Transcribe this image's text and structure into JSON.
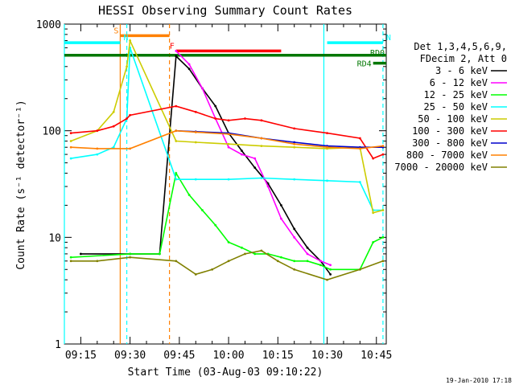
{
  "chart_data": {
    "type": "line",
    "title": "HESSI Observing Summary Count Rates",
    "xlabel": "Start Time (03-Aug-03 09:10:22)",
    "ylabel": "Count Rate (s⁻¹ detector⁻¹)",
    "yscale": "log",
    "ylim": [
      1,
      1000
    ],
    "xlim": [
      "09:10",
      "10:48"
    ],
    "x_ticks": [
      "09:15",
      "09:30",
      "09:45",
      "10:00",
      "10:15",
      "10:30",
      "10:45"
    ],
    "y_ticks": [
      "1",
      "10",
      "100",
      "1000"
    ],
    "legend_header": [
      "Det 1,3,4,5,6,9,",
      "FDecim 2, Att 0"
    ],
    "legend_placement": "right",
    "timestamp": "19-Jan-2010 17:18",
    "series": [
      {
        "name": "3 - 6 keV",
        "color": "#000000",
        "x": [
          "09:15",
          "09:30",
          "09:39",
          "09:44",
          "09:48",
          "09:52",
          "09:56",
          "10:00",
          "10:04",
          "10:08",
          "10:12",
          "10:16",
          "10:20",
          "10:24",
          "10:28",
          "10:31",
          "10:40",
          "10:45",
          "10:47"
        ],
        "values": [
          7,
          7,
          7,
          500,
          380,
          250,
          170,
          95,
          65,
          45,
          32,
          20,
          12,
          8,
          6,
          4.5,
          null,
          null,
          null
        ]
      },
      {
        "name": "6 - 12 keV",
        "color": "#ff00ff",
        "x": [
          "09:44",
          "09:48",
          "09:52",
          "09:56",
          "10:00",
          "10:04",
          "10:08",
          "10:12",
          "10:16",
          "10:20",
          "10:24",
          "10:28",
          "10:31",
          "10:40",
          "10:45",
          "10:47"
        ],
        "values": [
          560,
          420,
          250,
          130,
          70,
          60,
          55,
          30,
          15,
          10,
          7,
          6,
          5.5,
          null,
          null,
          null
        ]
      },
      {
        "name": "12 - 25 keV",
        "color": "#00ff00",
        "x": [
          "09:12",
          "09:30",
          "09:39",
          "09:44",
          "09:48",
          "09:52",
          "09:56",
          "10:00",
          "10:04",
          "10:08",
          "10:12",
          "10:16",
          "10:20",
          "10:24",
          "10:28",
          "10:31",
          "10:40",
          "10:44",
          "10:47"
        ],
        "values": [
          6.5,
          7,
          7,
          40,
          25,
          18,
          13,
          9,
          8,
          7,
          7,
          6.5,
          6,
          6,
          5.5,
          5,
          5,
          9,
          10
        ]
      },
      {
        "name": "25 - 50 keV",
        "color": "#00ffff",
        "x": [
          "09:12",
          "09:20",
          "09:25",
          "09:29",
          "09:30",
          "09:44",
          "09:50",
          "10:00",
          "10:10",
          "10:20",
          "10:30",
          "10:40",
          "10:44",
          "10:47"
        ],
        "values": [
          55,
          60,
          70,
          130,
          600,
          35,
          35,
          35,
          36,
          35,
          34,
          33,
          18,
          18
        ]
      },
      {
        "name": "50 - 100 keV",
        "color": "#cccc00",
        "x": [
          "09:12",
          "09:20",
          "09:25",
          "09:29",
          "09:30",
          "09:44",
          "09:50",
          "10:00",
          "10:10",
          "10:20",
          "10:30",
          "10:40",
          "10:44",
          "10:47"
        ],
        "values": [
          80,
          100,
          150,
          400,
          700,
          80,
          78,
          75,
          72,
          70,
          68,
          70,
          17,
          18
        ]
      },
      {
        "name": "100 - 300 keV",
        "color": "#ff0000",
        "x": [
          "09:12",
          "09:20",
          "09:25",
          "09:29",
          "09:30",
          "09:44",
          "09:50",
          "09:56",
          "10:00",
          "10:05",
          "10:10",
          "10:20",
          "10:30",
          "10:40",
          "10:44",
          "10:47"
        ],
        "values": [
          95,
          100,
          110,
          130,
          140,
          170,
          150,
          130,
          125,
          130,
          125,
          105,
          95,
          85,
          55,
          60
        ]
      },
      {
        "name": "300 - 800 keV",
        "color": "#0000cc",
        "x": [
          "09:44",
          "09:50",
          "10:00",
          "10:10",
          "10:20",
          "10:30",
          "10:40",
          "10:47"
        ],
        "values": [
          100,
          98,
          95,
          85,
          78,
          72,
          70,
          70
        ]
      },
      {
        "name": "800 - 7000 keV",
        "color": "#ff8000",
        "x": [
          "09:12",
          "09:20",
          "09:30",
          "09:44",
          "09:50",
          "10:00",
          "10:10",
          "10:20",
          "10:30",
          "10:40",
          "10:47"
        ],
        "values": [
          70,
          68,
          68,
          100,
          97,
          93,
          85,
          75,
          70,
          68,
          72
        ]
      },
      {
        "name": "7000 - 20000 keV",
        "color": "#808000",
        "x": [
          "09:12",
          "09:20",
          "09:30",
          "09:44",
          "09:50",
          "09:55",
          "10:00",
          "10:05",
          "10:10",
          "10:15",
          "10:20",
          "10:30",
          "10:40",
          "10:47"
        ],
        "values": [
          6,
          6,
          6.5,
          6,
          4.5,
          5,
          6,
          7,
          7.5,
          6,
          5,
          4,
          5,
          6
        ]
      }
    ],
    "annotations": [
      {
        "label": "S",
        "kind": "bar",
        "color": "#ff8000",
        "x_start": "09:27",
        "x_end": "09:42",
        "y": 780
      },
      {
        "label": "N",
        "kind": "bar",
        "color": "#00ffff",
        "x_start": "09:10",
        "x_end": "09:27",
        "y": 670
      },
      {
        "label": "N",
        "kind": "bar",
        "color": "#00ffff",
        "x_start": "10:30",
        "x_end": "10:47",
        "y": 670
      },
      {
        "label": "F",
        "kind": "bar",
        "color": "#ff0000",
        "x_start": "09:44",
        "x_end": "10:16",
        "y": 560
      },
      {
        "label": "RD0",
        "kind": "bar",
        "color": "#007700",
        "x_start": "09:10",
        "x_end": "10:48",
        "y": 510
      },
      {
        "label": "RD4",
        "kind": "bar",
        "color": "#007700",
        "x_start": "10:44",
        "x_end": "10:48",
        "y": 430
      }
    ],
    "vertical_lines": [
      {
        "x": "09:10",
        "color": "#00ffff",
        "style": "solid"
      },
      {
        "x": "09:27",
        "color": "#ff8000",
        "style": "solid"
      },
      {
        "x": "09:29",
        "color": "#00ffff",
        "style": "dashed"
      },
      {
        "x": "09:42",
        "color": "#ff8000",
        "style": "dashed"
      },
      {
        "x": "10:29",
        "color": "#00ffff",
        "style": "solid"
      },
      {
        "x": "10:47",
        "color": "#00ffff",
        "style": "dashed"
      }
    ]
  }
}
